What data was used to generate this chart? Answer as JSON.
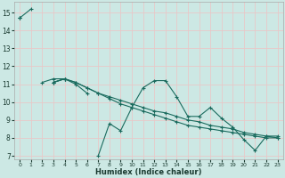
{
  "title": "",
  "xlabel": "Humidex (Indice chaleur)",
  "bg_color": "#cce8e4",
  "grid_color": "#e8c8c8",
  "line_color": "#1a6b5e",
  "xlim": [
    -0.5,
    23.5
  ],
  "ylim": [
    6.8,
    15.6
  ],
  "yticks": [
    7,
    8,
    9,
    10,
    11,
    12,
    13,
    14,
    15
  ],
  "xticks": [
    0,
    1,
    2,
    3,
    4,
    5,
    6,
    7,
    8,
    9,
    10,
    11,
    12,
    13,
    14,
    15,
    16,
    17,
    18,
    19,
    20,
    21,
    22,
    23
  ],
  "series": [
    [
      14.7,
      15.2,
      null,
      11.1,
      11.3,
      null,
      null,
      7.0,
      8.8,
      8.4,
      9.7,
      10.8,
      11.2,
      11.2,
      10.3,
      9.2,
      9.2,
      9.7,
      9.1,
      8.6,
      7.9,
      7.3,
      8.1,
      8.1
    ],
    [
      null,
      null,
      11.1,
      11.3,
      11.3,
      11.0,
      10.5,
      null,
      null,
      null,
      null,
      null,
      null,
      null,
      null,
      null,
      null,
      null,
      null,
      null,
      null,
      null,
      null,
      null
    ],
    [
      14.7,
      null,
      null,
      11.1,
      11.3,
      11.1,
      10.8,
      10.5,
      10.2,
      9.9,
      9.7,
      9.5,
      9.3,
      9.1,
      8.9,
      8.7,
      8.6,
      8.5,
      8.4,
      8.3,
      8.2,
      8.1,
      8.0,
      8.0
    ],
    [
      14.7,
      null,
      null,
      11.1,
      11.3,
      11.1,
      10.8,
      10.5,
      10.3,
      10.1,
      9.9,
      9.7,
      9.5,
      9.4,
      9.2,
      9.0,
      8.9,
      8.7,
      8.6,
      8.5,
      8.3,
      8.2,
      8.1,
      8.0
    ]
  ]
}
